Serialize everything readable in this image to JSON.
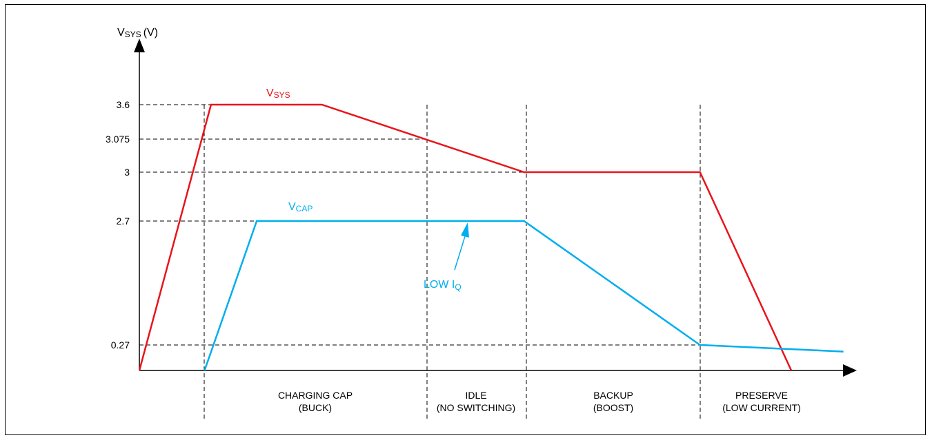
{
  "chart_data": {
    "type": "line",
    "ylabel": {
      "main": "V",
      "sub": "SYS",
      "unit": "(V)"
    },
    "ytick_labels": [
      "3.6",
      "3.075",
      "3",
      "2.7",
      "0.27"
    ],
    "phases": [
      {
        "line1": "CHARGING CAP",
        "line2": "(BUCK)"
      },
      {
        "line1": "IDLE",
        "line2": "(NO SWITCHING)"
      },
      {
        "line1": "BACKUP",
        "line2": "(BOOST)"
      },
      {
        "line1": "PRESERVE",
        "line2": "(LOW CURRENT)"
      }
    ],
    "series": [
      {
        "name": "VSYS",
        "name_main": "V",
        "name_sub": "SYS",
        "color": "#e8141b",
        "points": [
          [
            0,
            0
          ],
          [
            1.1,
            3.6
          ],
          [
            2.8,
            3.6
          ],
          [
            5.9,
            3.0
          ],
          [
            8.6,
            3.0
          ],
          [
            10.0,
            0
          ]
        ]
      },
      {
        "name": "VCAP",
        "name_main": "V",
        "name_sub": "CAP",
        "color": "#00aeef",
        "points": [
          [
            1.0,
            0
          ],
          [
            1.8,
            2.7
          ],
          [
            5.9,
            2.7
          ],
          [
            8.6,
            0.27
          ],
          [
            10.8,
            0.2
          ]
        ]
      }
    ],
    "annotation": {
      "main": "LOW I",
      "sub": "Q",
      "color": "#00aeef"
    },
    "colors": {
      "axis": "#000000",
      "vsys": "#e8141b",
      "vcap": "#00aeef",
      "guide": "#000000"
    }
  }
}
